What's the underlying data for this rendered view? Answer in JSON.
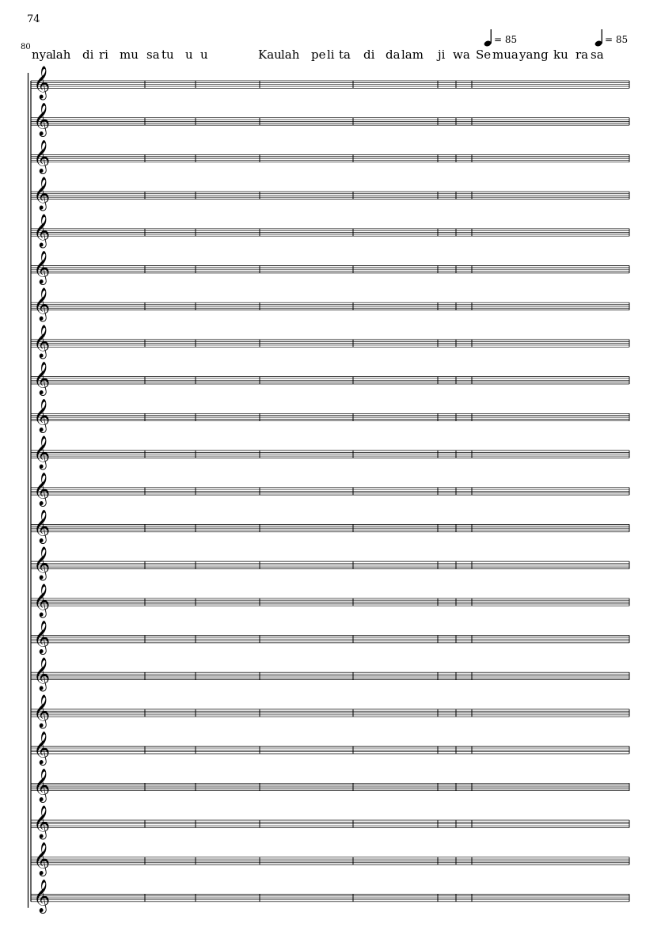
{
  "page_number": "74",
  "measure_number": "80",
  "lyrics": [
    {
      "text": "nya",
      "id": "nya"
    },
    {
      "text": "lah",
      "id": "lah"
    },
    {
      "text": "di",
      "id": "di-1"
    },
    {
      "text": "ri",
      "id": "ri"
    },
    {
      "text": "mu",
      "id": "mu-1"
    },
    {
      "text": "sa",
      "id": "sa-1"
    },
    {
      "text": "tu",
      "id": "tu"
    },
    {
      "text": "u",
      "id": "u-1"
    },
    {
      "text": "u",
      "id": "u-2"
    },
    {
      "text": "Kau",
      "id": "kau"
    },
    {
      "text": "lah",
      "id": "lah-2"
    },
    {
      "text": "pe",
      "id": "pe"
    },
    {
      "text": "li",
      "id": "li"
    },
    {
      "text": "ta",
      "id": "ta"
    },
    {
      "text": "di",
      "id": "di-2"
    },
    {
      "text": "da",
      "id": "da"
    },
    {
      "text": "lam",
      "id": "lam"
    },
    {
      "text": "ji",
      "id": "ji"
    },
    {
      "text": "wa",
      "id": "wa"
    },
    {
      "text": "Se",
      "id": "se"
    },
    {
      "text": "mua",
      "id": "mua"
    },
    {
      "text": "yang",
      "id": "yang"
    },
    {
      "text": "ku",
      "id": "ku"
    },
    {
      "text": "ra",
      "id": "ra"
    },
    {
      "text": "sa",
      "id": "sa-2"
    }
  ],
  "tempo_marks": [
    {
      "text": "= 85",
      "id": "tempo-1"
    },
    {
      "text": "= 85",
      "id": "tempo-2"
    }
  ],
  "staff_count": 23,
  "clef": "treble"
}
